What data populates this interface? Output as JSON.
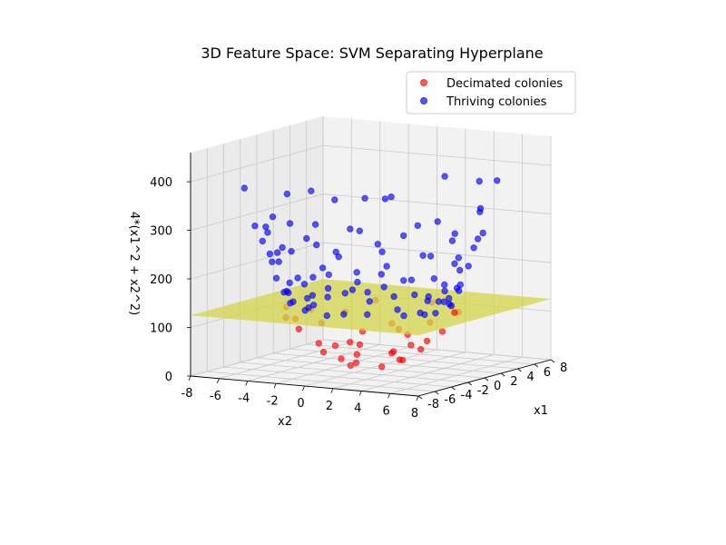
{
  "chart_data": {
    "type": "scatter",
    "title": "3D Feature Space: SVM Separating Hyperplane",
    "xlabel": "x1",
    "ylabel": "x2",
    "zlabel": "4*(x1^2 + x2^2)",
    "x_ticks": [
      "-8",
      "-6",
      "-4",
      "-2",
      "0",
      "2",
      "4",
      "6",
      "8"
    ],
    "y_ticks": [
      "-8",
      "-6",
      "-4",
      "-2",
      "0",
      "2",
      "4",
      "6",
      "8"
    ],
    "z_ticks": [
      "0",
      "100",
      "200",
      "300",
      "400"
    ],
    "xlim": [
      -8,
      8
    ],
    "ylim": [
      -8,
      8
    ],
    "zlim": [
      0,
      460
    ],
    "legend": [
      "Decimated colonies",
      "Thriving colonies"
    ],
    "legend_position": "top-right",
    "hyperplane_z": 125,
    "colors": {
      "decimated": "#ff0000",
      "thriving": "#0000ff",
      "plane": "#d4d44a"
    },
    "series": [
      {
        "name": "Decimated colonies",
        "points": [
          [
            5.2,
            1.3,
            114
          ],
          [
            4.4,
            3.1,
            116
          ],
          [
            2.7,
            4.6,
            114
          ],
          [
            0.5,
            5.6,
            126
          ],
          [
            -1.6,
            5.1,
            114
          ],
          [
            -3.3,
            3.9,
            105
          ],
          [
            -4.6,
            2.1,
            102
          ],
          [
            -5.4,
            -0.3,
            117
          ],
          [
            -4.8,
            -2.5,
            117
          ],
          [
            -3.2,
            -4.1,
            108
          ],
          [
            -1.1,
            -5.3,
            117
          ],
          [
            1.2,
            -4.9,
            102
          ],
          [
            3.1,
            -3.6,
            91
          ],
          [
            4.7,
            -2.4,
            111
          ],
          [
            3.6,
            0.5,
            53
          ],
          [
            2.5,
            2.5,
            50
          ],
          [
            0.2,
            3.4,
            46
          ],
          [
            -2.1,
            2.7,
            47
          ],
          [
            -3.2,
            0.9,
            45
          ],
          [
            -2.6,
            -1.8,
            40
          ],
          [
            -0.6,
            -3.3,
            45
          ],
          [
            1.8,
            -2.5,
            38
          ],
          [
            2.4,
            0.2,
            23
          ],
          [
            1.1,
            1.6,
            15
          ],
          [
            -0.9,
            1.3,
            10
          ],
          [
            -1.4,
            -0.6,
            10
          ],
          [
            0.3,
            -1.2,
            6
          ],
          [
            4.1,
            -0.9,
            70
          ],
          [
            -3.9,
            1.5,
            70
          ],
          [
            1.6,
            4.1,
            78
          ],
          [
            -1.8,
            -4.0,
            78
          ],
          [
            2.8,
            1.2,
            37
          ],
          [
            -2.7,
            -0.5,
            30
          ],
          [
            0.7,
            -2.9,
            35
          ],
          [
            -0.8,
            2.5,
            27
          ]
        ]
      },
      {
        "name": "Thriving colonies",
        "points": [
          [
            -7.2,
            5.2,
            395
          ],
          [
            7.4,
            0.9,
            362
          ],
          [
            -2.7,
            -7.3,
            364
          ],
          [
            0.8,
            7.2,
            336
          ],
          [
            -5.8,
            -4.0,
            307
          ],
          [
            5.1,
            -5.5,
            308
          ],
          [
            4.6,
            6.2,
            380
          ],
          [
            -7.0,
            -1.6,
            326
          ],
          [
            6.6,
            -2.4,
            315
          ],
          [
            -4.3,
            5.8,
            328
          ],
          [
            2.1,
            -7.1,
            330
          ],
          [
            -6.5,
            3.0,
            320
          ],
          [
            7.1,
            3.5,
            360
          ],
          [
            -1.7,
            6.9,
            302
          ],
          [
            3.8,
            -6.4,
            330
          ],
          [
            -6.9,
            0.2,
            286
          ],
          [
            5.7,
            4.4,
            313
          ],
          [
            0.2,
            -7.0,
            292
          ],
          [
            -3.5,
            -6.1,
            293
          ],
          [
            6.0,
            -3.9,
            311
          ],
          [
            -5.5,
            4.0,
            275
          ],
          [
            2.9,
            6.2,
            280
          ],
          [
            -6.2,
            -2.6,
            270
          ],
          [
            6.7,
            0.8,
            272
          ],
          [
            -1.1,
            -6.6,
            267
          ],
          [
            4.9,
            -4.3,
            252
          ],
          [
            -4.3,
            -5.1,
            268
          ],
          [
            1.6,
            6.6,
            275
          ],
          [
            -6.6,
            1.4,
            273
          ],
          [
            5.9,
            2.3,
            240
          ],
          [
            -2.9,
            5.9,
            259
          ],
          [
            3.3,
            -5.8,
            265
          ],
          [
            -5.6,
            -3.3,
            255
          ],
          [
            6.2,
            -1.3,
            240
          ],
          [
            -0.4,
            6.4,
            245
          ],
          [
            -4.9,
            3.6,
            225
          ],
          [
            4.2,
            4.8,
            240
          ],
          [
            -6.1,
            0.6,
            222
          ],
          [
            2.4,
            -5.9,
            240
          ],
          [
            -2.2,
            -5.8,
            230
          ],
          [
            5.5,
            -2.7,
            222
          ],
          [
            -4.0,
            -4.6,
            225
          ],
          [
            0.9,
            -6.1,
            220
          ],
          [
            -5.8,
            2.4,
            230
          ],
          [
            4.8,
            3.1,
            200
          ],
          [
            -3.5,
            4.9,
            210
          ],
          [
            2.0,
            5.7,
            215
          ],
          [
            -5.6,
            -1.4,
            195
          ],
          [
            5.8,
            0.3,
            205
          ],
          [
            -1.3,
            -5.7,
            210
          ],
          [
            3.7,
            -4.4,
            200
          ],
          [
            -4.8,
            -2.9,
            190
          ],
          [
            -0.9,
            5.7,
            190
          ],
          [
            5.2,
            -1.9,
            180
          ],
          [
            -5.3,
            1.8,
            190
          ],
          [
            1.2,
            5.6,
            180
          ],
          [
            -2.8,
            -5.0,
            185
          ],
          [
            4.4,
            3.7,
            190
          ],
          [
            -3.9,
            3.9,
            175
          ],
          [
            2.8,
            -5.0,
            180
          ],
          [
            -5.2,
            0.0,
            170
          ],
          [
            4.9,
            1.6,
            165
          ],
          [
            0.3,
            -5.3,
            170
          ],
          [
            -4.1,
            -3.4,
            165
          ],
          [
            3.2,
            4.2,
            160
          ],
          [
            -1.9,
            5.1,
            160
          ],
          [
            5.0,
            -0.6,
            155
          ],
          [
            -4.6,
            2.6,
            165
          ],
          [
            1.8,
            -5.1,
            165
          ],
          [
            -2.9,
            -4.4,
            158
          ],
          [
            3.9,
            -3.2,
            150
          ],
          [
            -0.1,
            5.2,
            150
          ],
          [
            -5.0,
            -1.1,
            150
          ],
          [
            4.3,
            2.7,
            145
          ],
          [
            -3.3,
            3.8,
            145
          ],
          [
            2.4,
            4.8,
            160
          ],
          [
            -1.2,
            -5.2,
            150
          ],
          [
            4.7,
            -1.8,
            140
          ],
          [
            -4.4,
            -1.8,
            140
          ],
          [
            0.9,
            5.0,
            140
          ],
          [
            -2.1,
            4.7,
            135
          ],
          [
            3.6,
            3.4,
            135
          ],
          [
            -3.7,
            -3.3,
            145
          ],
          [
            2.6,
            -4.5,
            140
          ],
          [
            -4.8,
            0.9,
            135
          ],
          [
            1.4,
            -4.9,
            130
          ],
          [
            4.6,
            0.4,
            130
          ],
          [
            -1.8,
            -4.6,
            130
          ],
          [
            -4.2,
            2.2,
            135
          ],
          [
            3.1,
            -3.6,
            130
          ],
          [
            -0.6,
            4.9,
            128
          ],
          [
            4.1,
            -2.6,
            130
          ],
          [
            -3.8,
            -2.4,
            130
          ],
          [
            2.0,
            4.5,
            130
          ],
          [
            -2.7,
            3.9,
            130
          ],
          [
            4.4,
            1.5,
            130
          ],
          [
            0.6,
            -4.8,
            128
          ],
          [
            -4.6,
            -0.4,
            128
          ],
          [
            3.4,
            2.8,
            128
          ],
          [
            -1.4,
            4.6,
            128
          ]
        ]
      }
    ]
  }
}
